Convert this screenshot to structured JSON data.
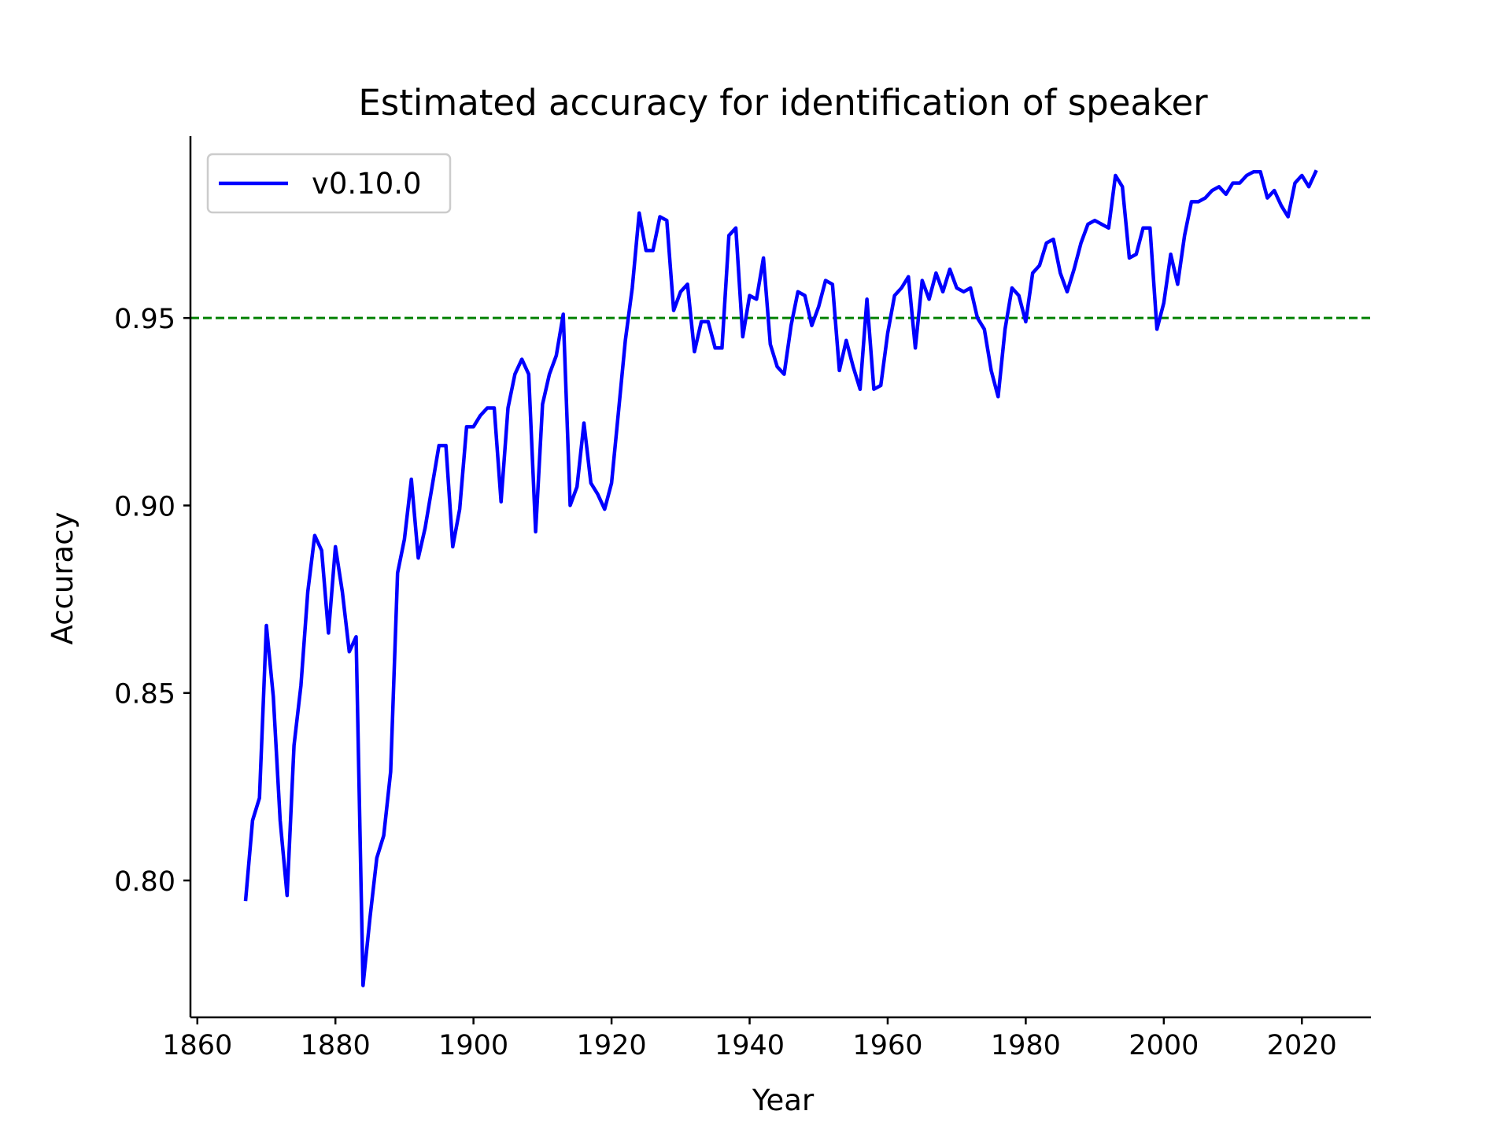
{
  "chart_data": {
    "type": "line",
    "title": "Estimated accuracy for identification of speaker",
    "xlabel": "Year",
    "ylabel": "Accuracy",
    "xlim": [
      1859,
      2030
    ],
    "ylim": [
      0.7635,
      0.9985
    ],
    "xticks": [
      1860,
      1880,
      1900,
      1920,
      1940,
      1960,
      1980,
      2000,
      2020
    ],
    "xtick_labels": [
      "1860",
      "1880",
      "1900",
      "1920",
      "1940",
      "1960",
      "1980",
      "2000",
      "2020"
    ],
    "yticks": [
      0.8,
      0.85,
      0.9,
      0.95
    ],
    "ytick_labels": [
      "0.80",
      "0.85",
      "0.90",
      "0.95"
    ],
    "grid": false,
    "legend_position": "top-left",
    "reference_line": {
      "y": 0.95,
      "color": "#008000",
      "style": "dashed"
    },
    "series": [
      {
        "name": "v0.10.0",
        "color": "#0000ff",
        "x": [
          1867,
          1868,
          1869,
          1870,
          1871,
          1872,
          1873,
          1874,
          1875,
          1876,
          1877,
          1878,
          1879,
          1880,
          1881,
          1882,
          1883,
          1884,
          1885,
          1886,
          1887,
          1888,
          1889,
          1890,
          1891,
          1892,
          1893,
          1894,
          1895,
          1896,
          1897,
          1898,
          1899,
          1900,
          1901,
          1902,
          1903,
          1904,
          1905,
          1906,
          1907,
          1908,
          1909,
          1910,
          1911,
          1912,
          1913,
          1914,
          1915,
          1916,
          1917,
          1918,
          1919,
          1920,
          1921,
          1922,
          1923,
          1924,
          1925,
          1926,
          1927,
          1928,
          1929,
          1930,
          1931,
          1932,
          1933,
          1934,
          1935,
          1936,
          1937,
          1938,
          1939,
          1940,
          1941,
          1942,
          1943,
          1944,
          1945,
          1946,
          1947,
          1948,
          1949,
          1950,
          1951,
          1952,
          1953,
          1954,
          1955,
          1956,
          1957,
          1958,
          1959,
          1960,
          1961,
          1962,
          1963,
          1964,
          1965,
          1966,
          1967,
          1968,
          1969,
          1970,
          1971,
          1972,
          1973,
          1974,
          1975,
          1976,
          1977,
          1978,
          1979,
          1980,
          1981,
          1982,
          1983,
          1984,
          1985,
          1986,
          1987,
          1988,
          1989,
          1990,
          1991,
          1992,
          1993,
          1994,
          1995,
          1996,
          1997,
          1998,
          1999,
          2000,
          2001,
          2002,
          2003,
          2004,
          2005,
          2006,
          2007,
          2008,
          2009,
          2010,
          2011,
          2012,
          2013,
          2014,
          2015,
          2016,
          2017,
          2018,
          2019,
          2020,
          2021,
          2022
        ],
        "values": [
          0.795,
          0.816,
          0.822,
          0.868,
          0.849,
          0.816,
          0.796,
          0.836,
          0.852,
          0.877,
          0.892,
          0.888,
          0.866,
          0.889,
          0.877,
          0.861,
          0.865,
          0.772,
          0.79,
          0.806,
          0.812,
          0.829,
          0.882,
          0.891,
          0.907,
          0.886,
          0.894,
          0.905,
          0.916,
          0.916,
          0.889,
          0.899,
          0.921,
          0.921,
          0.924,
          0.926,
          0.926,
          0.901,
          0.926,
          0.935,
          0.939,
          0.935,
          0.893,
          0.927,
          0.935,
          0.94,
          0.951,
          0.9,
          0.905,
          0.922,
          0.906,
          0.903,
          0.899,
          0.906,
          0.925,
          0.944,
          0.958,
          0.978,
          0.968,
          0.968,
          0.977,
          0.976,
          0.952,
          0.957,
          0.959,
          0.941,
          0.949,
          0.949,
          0.942,
          0.942,
          0.972,
          0.974,
          0.945,
          0.956,
          0.955,
          0.966,
          0.943,
          0.937,
          0.935,
          0.948,
          0.957,
          0.956,
          0.948,
          0.953,
          0.96,
          0.959,
          0.936,
          0.944,
          0.937,
          0.931,
          0.955,
          0.931,
          0.932,
          0.946,
          0.956,
          0.958,
          0.961,
          0.942,
          0.96,
          0.955,
          0.962,
          0.957,
          0.963,
          0.958,
          0.957,
          0.958,
          0.95,
          0.947,
          0.936,
          0.929,
          0.947,
          0.958,
          0.956,
          0.949,
          0.962,
          0.964,
          0.97,
          0.971,
          0.962,
          0.957,
          0.963,
          0.97,
          0.975,
          0.976,
          0.975,
          0.974,
          0.988,
          0.985,
          0.966,
          0.967,
          0.974,
          0.974,
          0.947,
          0.954,
          0.967,
          0.959,
          0.972,
          0.981,
          0.981,
          0.982,
          0.984,
          0.985,
          0.983,
          0.986,
          0.986,
          0.988,
          0.989,
          0.989,
          0.982,
          0.984,
          0.98,
          0.977,
          0.986,
          0.988,
          0.985,
          0.989
        ]
      }
    ]
  }
}
